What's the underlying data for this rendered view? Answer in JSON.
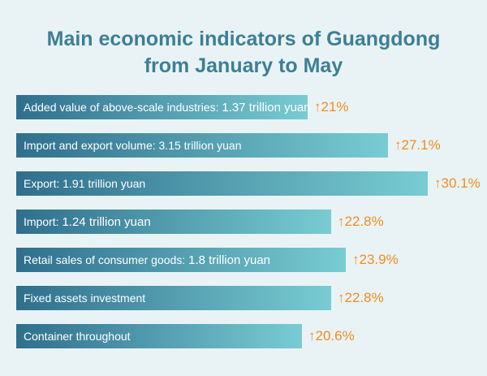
{
  "chart_data": {
    "type": "bar",
    "orientation": "horizontal",
    "title_line1": "Main economic indicators of Guangdong",
    "title_line2": "from January to May",
    "items": [
      {
        "label": "Added value of above-scale industries: ",
        "value_text": "1.37 trillion yuan",
        "growth_text": "↑21%",
        "growth": 21
      },
      {
        "label": "Import and export volume: 3.15 trillion yuan",
        "value_text": "",
        "growth_text": "↑27.1%",
        "growth": 27.1
      },
      {
        "label": "Export: 1.91 trillion yuan",
        "value_text": "",
        "growth_text": "↑30.1%",
        "growth": 30.1
      },
      {
        "label": "Import: ",
        "value_text": "1.24 trillion yuan",
        "growth_text": "↑22.8%",
        "growth": 22.8
      },
      {
        "label": "Retail sales of consumer goods: ",
        "value_text": "1.8 trillion yuan",
        "growth_text": "↑23.9%",
        "growth": 23.9
      },
      {
        "label": "Fixed assets investment",
        "value_text": "",
        "growth_text": "↑22.8%",
        "growth": 22.8
      },
      {
        "label": "Container throughout",
        "value_text": "",
        "growth_text": "↑20.6%",
        "growth": 20.6
      }
    ],
    "colors": {
      "bar_start": "#2f6f8d",
      "bar_end": "#78ccd2",
      "growth": "#f28c1e",
      "title": "#3d7f95",
      "background": "#e9f3f5"
    }
  }
}
